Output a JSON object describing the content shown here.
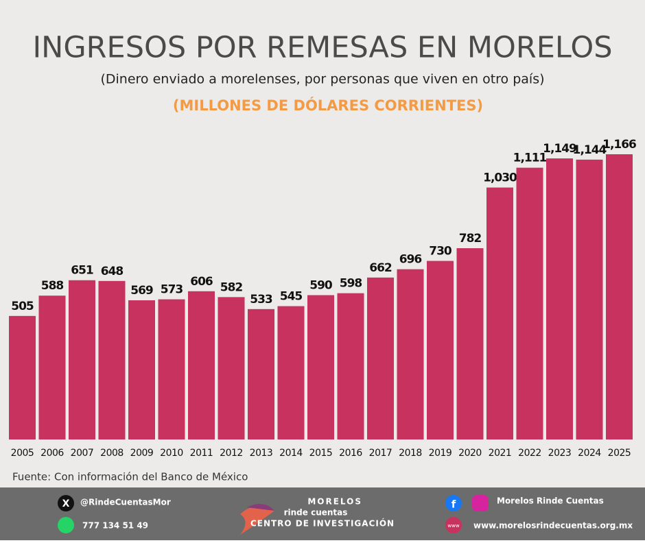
{
  "chart_data": {
    "type": "bar",
    "title": "INGRESOS POR REMESAS EN MORELOS",
    "subtitle": "(Dinero enviado a morelenses, por personas que viven en otro país)",
    "units": "(MILLONES DE DÓLARES CORRIENTES)",
    "source": "Fuente: Con información del Banco de México",
    "categories": [
      "2005",
      "2006",
      "2007",
      "2008",
      "2009",
      "2010",
      "2011",
      "2012",
      "2013",
      "2014",
      "2015",
      "2016",
      "2017",
      "2018",
      "2019",
      "2020",
      "2021",
      "2022",
      "2023",
      "2024",
      "2025"
    ],
    "values": [
      505,
      588,
      651,
      648,
      569,
      573,
      606,
      582,
      533,
      545,
      590,
      598,
      662,
      696,
      730,
      782,
      1030,
      1111,
      1149,
      1144,
      1166
    ],
    "value_labels": [
      "505",
      "588",
      "651",
      "648",
      "569",
      "573",
      "606",
      "582",
      "533",
      "545",
      "590",
      "598",
      "662",
      "696",
      "730",
      "782",
      "1,030",
      "1,111",
      "1,149",
      "1,144",
      "1,166"
    ],
    "color": "#c8325e"
  },
  "footer": {
    "twitter": "@RindeCuentasMor",
    "phone": "777 134 51 49",
    "logo_top": "MORELOS",
    "logo_main": "rinde cuentas",
    "logo_sub": "CENTRO DE INVESTIGACIÓN",
    "social": "Morelos Rinde Cuentas",
    "web_icon": "www",
    "website": "www.morelosrindecuentas.org.mx"
  }
}
